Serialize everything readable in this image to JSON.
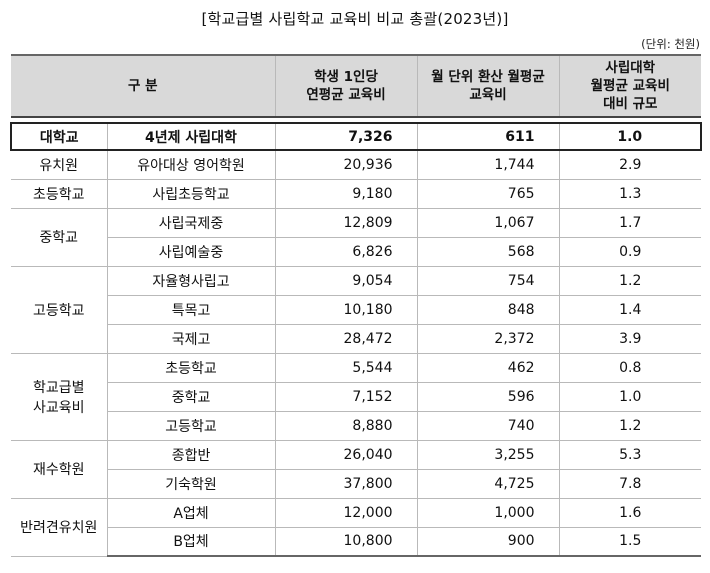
{
  "title": "[학교급별 사립학교 교육비 비교 총괄(2023년)]",
  "unit": "(단위: 천원)",
  "headers": {
    "category": "구 분",
    "col1_line1": "학생 1인당",
    "col1_line2": "연평균 교육비",
    "col2_line1": "월 단위 환산 월평균",
    "col2_line2": "교육비",
    "col3_line1": "사립대학",
    "col3_line2": "월평균 교육비",
    "col3_line3": "대비 규모"
  },
  "highlight": {
    "group": "대학교",
    "sub": "4년제 사립대학",
    "annual": "7,326",
    "monthly": "611",
    "ratio": "1.0"
  },
  "groups": [
    {
      "name": "유치원",
      "name2": "",
      "rows": [
        {
          "sub": "유아대상 영어학원",
          "annual": "20,936",
          "monthly": "1,744",
          "ratio": "2.9"
        }
      ]
    },
    {
      "name": "초등학교",
      "name2": "",
      "rows": [
        {
          "sub": "사립초등학교",
          "annual": "9,180",
          "monthly": "765",
          "ratio": "1.3"
        }
      ]
    },
    {
      "name": "중학교",
      "name2": "",
      "rows": [
        {
          "sub": "사립국제중",
          "annual": "12,809",
          "monthly": "1,067",
          "ratio": "1.7"
        },
        {
          "sub": "사립예술중",
          "annual": "6,826",
          "monthly": "568",
          "ratio": "0.9"
        }
      ]
    },
    {
      "name": "고등학교",
      "name2": "",
      "rows": [
        {
          "sub": "자율형사립고",
          "annual": "9,054",
          "monthly": "754",
          "ratio": "1.2"
        },
        {
          "sub": "특목고",
          "annual": "10,180",
          "monthly": "848",
          "ratio": "1.4"
        },
        {
          "sub": "국제고",
          "annual": "28,472",
          "monthly": "2,372",
          "ratio": "3.9"
        }
      ]
    },
    {
      "name": "학교급별",
      "name2": "사교육비",
      "rows": [
        {
          "sub": "초등학교",
          "annual": "5,544",
          "monthly": "462",
          "ratio": "0.8"
        },
        {
          "sub": "중학교",
          "annual": "7,152",
          "monthly": "596",
          "ratio": "1.0"
        },
        {
          "sub": "고등학교",
          "annual": "8,880",
          "monthly": "740",
          "ratio": "1.2"
        }
      ]
    },
    {
      "name": "재수학원",
      "name2": "",
      "rows": [
        {
          "sub": "종합반",
          "annual": "26,040",
          "monthly": "3,255",
          "ratio": "5.3"
        },
        {
          "sub": "기숙학원",
          "annual": "37,800",
          "monthly": "4,725",
          "ratio": "7.8"
        }
      ]
    },
    {
      "name": "반려견유치원",
      "name2": "",
      "rows": [
        {
          "sub": "A업체",
          "annual": "12,000",
          "monthly": "1,000",
          "ratio": "1.6"
        },
        {
          "sub": "B업체",
          "annual": "10,800",
          "monthly": "900",
          "ratio": "1.5"
        }
      ]
    }
  ]
}
